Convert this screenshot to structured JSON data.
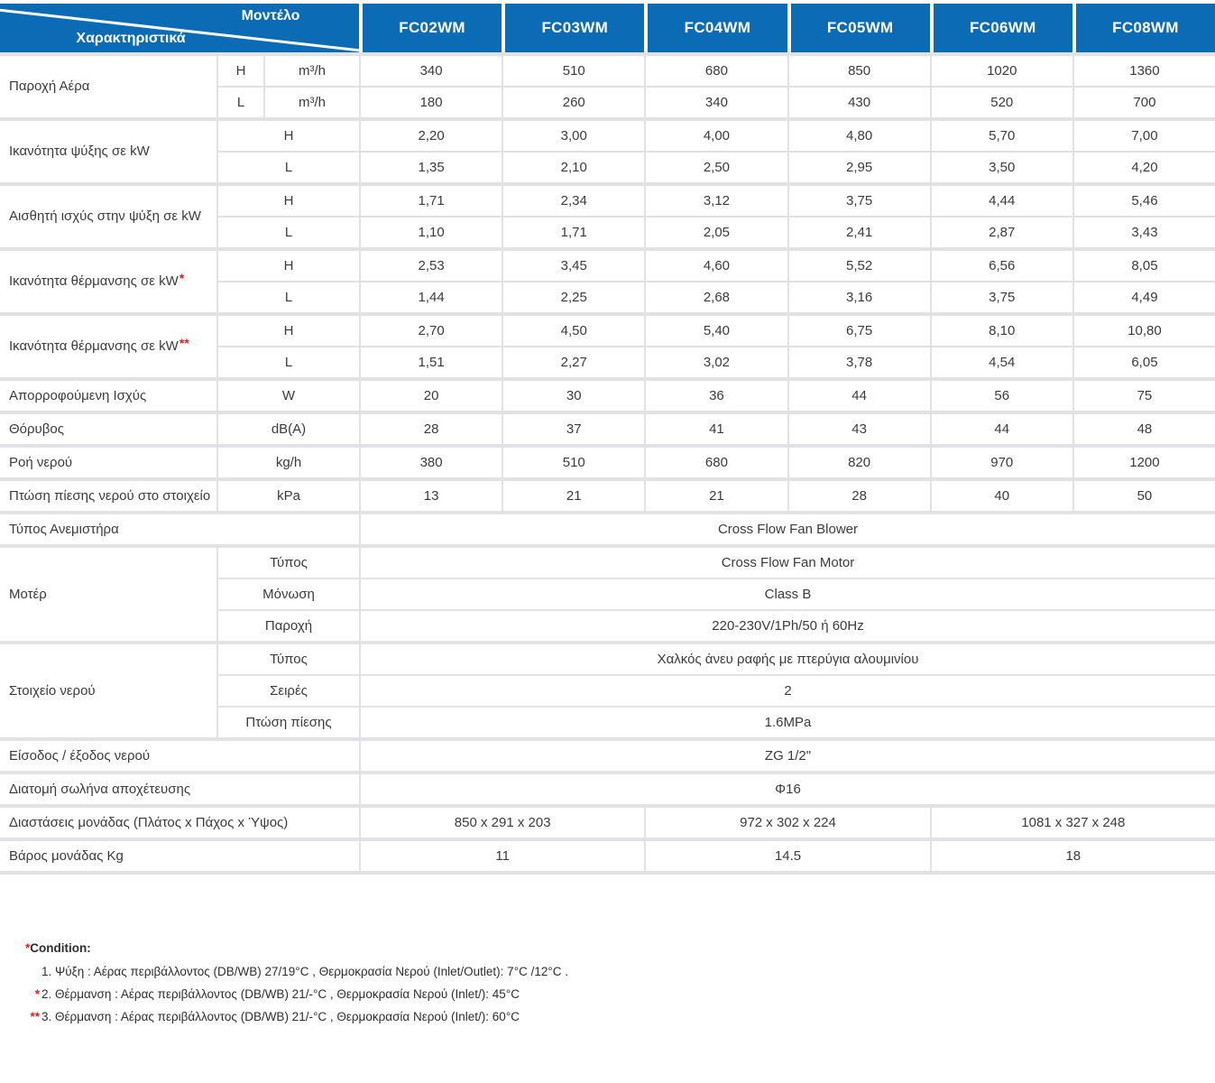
{
  "header": {
    "corner_top": "Μοντέλο",
    "corner_bottom": "Χαρακτηριστικά",
    "models": [
      "FC02WM",
      "FC03WM",
      "FC04WM",
      "FC05WM",
      "FC06WM",
      "FC08WM"
    ]
  },
  "colors": {
    "header_blue": "#0b6cb5",
    "grid_gray": "#e2e2e4",
    "text_dark": "#3b3b3b",
    "accent_red": "#e61e1e"
  },
  "groups": [
    {
      "label": "Παροχή Αέρα",
      "mark": "",
      "rows": [
        {
          "subs": [
            "H",
            "m³/h"
          ],
          "cells": [
            "340",
            "510",
            "680",
            "850",
            "1020",
            "1360"
          ]
        },
        {
          "subs": [
            "L",
            "m³/h"
          ],
          "cells": [
            "180",
            "260",
            "340",
            "430",
            "520",
            "700"
          ]
        }
      ]
    },
    {
      "label": "Ικανότητα ψύξης σε kW",
      "mark": "",
      "rows": [
        {
          "subs": [
            "H"
          ],
          "cells": [
            "2,20",
            "3,00",
            "4,00",
            "4,80",
            "5,70",
            "7,00"
          ]
        },
        {
          "subs": [
            "L"
          ],
          "cells": [
            "1,35",
            "2,10",
            "2,50",
            "2,95",
            "3,50",
            "4,20"
          ]
        }
      ]
    },
    {
      "label": "Αισθητή ισχύς στην ψύξη σε kW",
      "mark": "",
      "rows": [
        {
          "subs": [
            "H"
          ],
          "cells": [
            "1,71",
            "2,34",
            "3,12",
            "3,75",
            "4,44",
            "5,46"
          ]
        },
        {
          "subs": [
            "L"
          ],
          "cells": [
            "1,10",
            "1,71",
            "2,05",
            "2,41",
            "2,87",
            "3,43"
          ]
        }
      ]
    },
    {
      "label": "Ικανότητα θέρμανσης σε kW",
      "mark": "*",
      "rows": [
        {
          "subs": [
            "H"
          ],
          "cells": [
            "2,53",
            "3,45",
            "4,60",
            "5,52",
            "6,56",
            "8,05"
          ]
        },
        {
          "subs": [
            "L"
          ],
          "cells": [
            "1,44",
            "2,25",
            "2,68",
            "3,16",
            "3,75",
            "4,49"
          ]
        }
      ]
    },
    {
      "label": "Ικανότητα θέρμανσης σε kW",
      "mark": "**",
      "rows": [
        {
          "subs": [
            "H"
          ],
          "cells": [
            "2,70",
            "4,50",
            "5,40",
            "6,75",
            "8,10",
            "10,80"
          ]
        },
        {
          "subs": [
            "L"
          ],
          "cells": [
            "1,51",
            "2,27",
            "3,02",
            "3,78",
            "4,54",
            "6,05"
          ]
        }
      ]
    },
    {
      "label": "Απορροφούμενη Ισχύς",
      "mark": "",
      "rows": [
        {
          "subs": [
            "W"
          ],
          "cells": [
            "20",
            "30",
            "36",
            "44",
            "56",
            "75"
          ]
        }
      ]
    },
    {
      "label": "Θόρυβος",
      "mark": "",
      "rows": [
        {
          "subs": [
            "dB(A)"
          ],
          "cells": [
            "28",
            "37",
            "41",
            "43",
            "44",
            "48"
          ]
        }
      ]
    },
    {
      "label": "Ροή νερού",
      "mark": "",
      "rows": [
        {
          "subs": [
            "kg/h"
          ],
          "cells": [
            "380",
            "510",
            "680",
            "820",
            "970",
            "1200"
          ]
        }
      ]
    },
    {
      "label": "Πτώση πίεσης νερού στο στοιχείο",
      "mark": "",
      "rows": [
        {
          "subs": [
            "kPa"
          ],
          "cells": [
            "13",
            "21",
            "21",
            "28",
            "40",
            "50"
          ]
        }
      ]
    },
    {
      "label": "Τύπος Ανεμιστήρα",
      "mark": "",
      "rows": [
        {
          "subs": [],
          "cells": [
            {
              "text": "Cross Flow Fan Blower",
              "span": 6
            }
          ]
        }
      ]
    },
    {
      "label": "Μοτέρ",
      "mark": "",
      "rows": [
        {
          "subs": [
            "Τύπος"
          ],
          "cells": [
            {
              "text": "Cross Flow Fan Motor",
              "span": 6
            }
          ]
        },
        {
          "subs": [
            "Μόνωση"
          ],
          "cells": [
            {
              "text": "Class B",
              "span": 6
            }
          ]
        },
        {
          "subs": [
            "Παροχή"
          ],
          "cells": [
            {
              "text": "220-230V/1Ph/50 ή 60Hz",
              "span": 6
            }
          ]
        }
      ]
    },
    {
      "label": "Στοιχείο νερού",
      "mark": "",
      "rows": [
        {
          "subs": [
            "Τύπος"
          ],
          "cells": [
            {
              "text": "Χαλκός άνευ ραφής με πτερύγια αλουμινίου",
              "span": 6
            }
          ]
        },
        {
          "subs": [
            "Σειρές"
          ],
          "cells": [
            {
              "text": "2",
              "span": 6
            }
          ]
        },
        {
          "subs": [
            "Πτώση πίεσης"
          ],
          "cells": [
            {
              "text": "1.6MPa",
              "span": 6
            }
          ]
        }
      ]
    },
    {
      "label": "Είσοδος / έξοδος νερού",
      "mark": "",
      "rows": [
        {
          "subs": [],
          "cells": [
            {
              "text": "ZG 1/2\"",
              "span": 6
            }
          ]
        }
      ]
    },
    {
      "label": "Διατομή σωλήνα αποχέτευσης",
      "mark": "",
      "rows": [
        {
          "subs": [],
          "cells": [
            {
              "text": "Φ16",
              "span": 6
            }
          ]
        }
      ]
    },
    {
      "label": "Διαστάσεις μονάδας (Πλάτος x Πάχος x Ύψος)",
      "mark": "",
      "rows": [
        {
          "subs": [],
          "cells": [
            {
              "text": "850 x 291 x 203",
              "span": 2
            },
            {
              "text": "972 x 302 x 224",
              "span": 2
            },
            {
              "text": "1081 x 327 x 248",
              "span": 2
            }
          ]
        }
      ]
    },
    {
      "label": "Βάρος μονάδας Kg",
      "mark": "",
      "rows": [
        {
          "subs": [],
          "cells": [
            {
              "text": "11",
              "span": 2
            },
            {
              "text": "14.5",
              "span": 2
            },
            {
              "text": "18",
              "span": 2
            }
          ]
        }
      ]
    }
  ],
  "footnotes": {
    "title_mark": "*",
    "title": "Condition:",
    "lines": [
      {
        "mark": "",
        "text": "1. Ψύξη : Αέρας περιβάλλοντος (DB/WB) 27/19°C , Θερμοκρασία Νερού (Inlet/Outlet): 7°C /12°C ."
      },
      {
        "mark": "*",
        "text": "2. Θέρμανση : Αέρας περιβάλλοντος (DB/WB) 21/-°C , Θερμοκρασία Νερού (Inlet/): 45°C"
      },
      {
        "mark": "**",
        "text": "3. Θέρμανση : Αέρας περιβάλλοντος (DB/WB) 21/-°C , Θερμοκρασία Νερού (Inlet/): 60°C"
      }
    ]
  }
}
